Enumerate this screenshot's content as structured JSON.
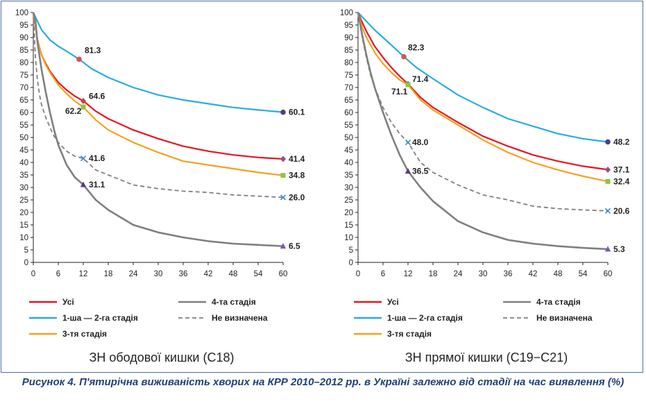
{
  "legend_labels": {
    "all": "Усі",
    "stage12": "1-ша — 2-га стадія",
    "stage3": "3-тя стадія",
    "stage4": "4-та стадія",
    "undefined": "Не визначена"
  },
  "series_colors": {
    "all": "#e8141d",
    "stage12": "#29abe2",
    "stage3": "#f7a01c",
    "stage4": "#7f7f7f",
    "undefined": "#7f7f7f"
  },
  "caption": "Рисунок 4. П'ятирічна виживаність хворих на КРР 2010–2012 рр. в Україні залежно від стадії на час виявлення (%)",
  "chart_data": [
    {
      "type": "line",
      "title": "ЗН ободової кишки (С18)",
      "xlabel": "",
      "ylabel": "",
      "xlim": [
        0,
        60
      ],
      "ylim": [
        0,
        100
      ],
      "xticks": [
        0,
        6,
        12,
        18,
        24,
        30,
        36,
        42,
        48,
        54,
        60
      ],
      "yticks": [
        0,
        5,
        10,
        15,
        20,
        25,
        30,
        35,
        40,
        45,
        50,
        55,
        60,
        65,
        70,
        75,
        80,
        85,
        90,
        95,
        100
      ],
      "grid": false,
      "legend_position": "bottom",
      "series": [
        {
          "key": "stage12",
          "name": "1-ша — 2-га стадія",
          "dash": false,
          "x": [
            0,
            2,
            4,
            6,
            8,
            11,
            14,
            18,
            24,
            30,
            36,
            42,
            48,
            54,
            60
          ],
          "y": [
            100,
            93,
            89,
            86.5,
            84.5,
            81.3,
            77.5,
            74,
            70,
            67,
            65,
            63.5,
            62,
            61,
            60.1
          ],
          "markers": [
            {
              "x": 11,
              "y": 81.3,
              "label": "81.3"
            },
            {
              "x": 60,
              "y": 60.1,
              "label": "60.1"
            }
          ]
        },
        {
          "key": "all",
          "name": "Усі",
          "dash": false,
          "x": [
            0,
            1,
            2,
            3,
            4,
            6,
            8,
            10,
            12,
            15,
            18,
            24,
            30,
            36,
            42,
            48,
            54,
            60
          ],
          "y": [
            100,
            89,
            83,
            79.5,
            76.5,
            72,
            69,
            66.5,
            64.6,
            60.5,
            57.5,
            53,
            49.5,
            46.5,
            44.5,
            43,
            42,
            41.4
          ],
          "markers": [
            {
              "x": 12,
              "y": 64.6,
              "label": "64.6"
            },
            {
              "x": 60,
              "y": 41.4,
              "label": "41.4"
            }
          ]
        },
        {
          "key": "stage3",
          "name": "3-тя стадія",
          "dash": false,
          "x": [
            0,
            1,
            2,
            3,
            4,
            6,
            8,
            10,
            12,
            15,
            18,
            24,
            30,
            36,
            42,
            48,
            54,
            60
          ],
          "y": [
            100,
            89,
            83,
            79,
            76,
            71,
            67.5,
            64.5,
            62.2,
            57,
            53,
            48,
            44,
            40.5,
            39,
            37.5,
            36,
            34.8
          ],
          "markers": [
            {
              "x": 12,
              "y": 62.2,
              "label": "62.2"
            },
            {
              "x": 60,
              "y": 34.8,
              "label": "34.8"
            }
          ]
        },
        {
          "key": "undefined",
          "name": "Не визначена",
          "dash": true,
          "x": [
            0,
            0.5,
            1,
            1.5,
            2,
            3,
            4,
            5,
            6,
            8,
            10,
            12,
            15,
            18,
            24,
            30,
            36,
            42,
            48,
            54,
            60
          ],
          "y": [
            100,
            82,
            73,
            67,
            63,
            58,
            54,
            50.5,
            48,
            44.5,
            42.5,
            41.6,
            37,
            35,
            31,
            29.5,
            28.5,
            28,
            27,
            26.5,
            26
          ],
          "markers": [
            {
              "x": 12,
              "y": 41.6,
              "label": "41.6"
            },
            {
              "x": 60,
              "y": 26,
              "label": "26.0"
            }
          ]
        },
        {
          "key": "stage4",
          "name": "4-та стадія",
          "dash": false,
          "x": [
            0,
            0.5,
            1,
            2,
            3,
            4,
            5,
            6,
            8,
            10,
            12,
            15,
            18,
            24,
            30,
            36,
            42,
            48,
            54,
            60
          ],
          "y": [
            100,
            97,
            88,
            77,
            68,
            60,
            53,
            47,
            39,
            34,
            31.1,
            25,
            21,
            15,
            12,
            10,
            8.5,
            7.5,
            7,
            6.5
          ],
          "markers": [
            {
              "x": 12,
              "y": 31.1,
              "label": "31.1"
            },
            {
              "x": 60,
              "y": 6.5,
              "label": "6.5"
            }
          ]
        }
      ]
    },
    {
      "type": "line",
      "title": "ЗН прямої кишки (С19−С21)",
      "xlabel": "",
      "ylabel": "",
      "xlim": [
        0,
        60
      ],
      "ylim": [
        0,
        100
      ],
      "xticks": [
        0,
        6,
        12,
        18,
        24,
        30,
        36,
        42,
        48,
        54,
        60
      ],
      "yticks": [
        0,
        5,
        10,
        15,
        20,
        25,
        30,
        35,
        40,
        45,
        50,
        55,
        60,
        65,
        70,
        75,
        80,
        85,
        90,
        95,
        100
      ],
      "grid": false,
      "legend_position": "bottom",
      "series": [
        {
          "key": "stage12",
          "name": "1-ша — 2-га стадія",
          "dash": false,
          "x": [
            0,
            2,
            4,
            6,
            8,
            11,
            14,
            18,
            24,
            30,
            36,
            42,
            48,
            54,
            60
          ],
          "y": [
            100,
            96.5,
            93,
            90,
            87,
            82.3,
            78,
            73.5,
            67,
            62,
            57.5,
            54.5,
            51.5,
            49.5,
            48.2
          ],
          "markers": [
            {
              "x": 11,
              "y": 82.3,
              "label": "82.3"
            },
            {
              "x": 60,
              "y": 48.2,
              "label": "48.2"
            }
          ]
        },
        {
          "key": "all",
          "name": "Усі",
          "dash": false,
          "x": [
            0,
            1,
            2,
            4,
            6,
            8,
            10,
            12,
            15,
            18,
            24,
            30,
            36,
            42,
            48,
            54,
            60
          ],
          "y": [
            100,
            96,
            92.5,
            86.5,
            82,
            78,
            74.5,
            71.4,
            66,
            62,
            56,
            50.5,
            46.5,
            43,
            40.5,
            38.5,
            37.1
          ],
          "markers": [
            {
              "x": 12,
              "y": 71.4,
              "label": "71.4"
            },
            {
              "x": 60,
              "y": 37.1,
              "label": "37.1"
            }
          ]
        },
        {
          "key": "stage3",
          "name": "3-тя стадія",
          "dash": false,
          "x": [
            0,
            1,
            2,
            4,
            6,
            8,
            10,
            12,
            15,
            18,
            24,
            30,
            36,
            42,
            48,
            54,
            60
          ],
          "y": [
            100,
            94,
            90,
            84,
            79.5,
            76,
            73,
            71.1,
            65,
            61,
            55,
            49,
            44,
            40,
            37,
            34.5,
            32.4
          ],
          "markers": [
            {
              "x": 12,
              "y": 71.1,
              "label": "71.1"
            },
            {
              "x": 60,
              "y": 32.4,
              "label": "32.4"
            }
          ]
        },
        {
          "key": "undefined",
          "name": "Не визначена",
          "dash": true,
          "x": [
            0,
            1,
            2,
            3,
            4,
            6,
            8,
            10,
            12,
            15,
            18,
            24,
            30,
            36,
            42,
            48,
            54,
            60
          ],
          "y": [
            100,
            90,
            82,
            75,
            70,
            62,
            56,
            51.5,
            48,
            40,
            36,
            31,
            27,
            25,
            22.5,
            21.5,
            21,
            20.6
          ],
          "markers": [
            {
              "x": 12,
              "y": 48,
              "label": "48.0"
            },
            {
              "x": 60,
              "y": 20.6,
              "label": "20.6"
            }
          ]
        },
        {
          "key": "stage4",
          "name": "4-та стадія",
          "dash": false,
          "x": [
            0,
            1,
            2,
            3,
            4,
            6,
            8,
            10,
            12,
            15,
            18,
            24,
            30,
            36,
            42,
            48,
            54,
            60
          ],
          "y": [
            100,
            91,
            83,
            76,
            70,
            60,
            51,
            43,
            36.5,
            30,
            24.5,
            16.5,
            12,
            9,
            7.5,
            6.5,
            5.8,
            5.3
          ],
          "markers": [
            {
              "x": 12,
              "y": 36.5,
              "label": "36.5"
            },
            {
              "x": 60,
              "y": 5.3,
              "label": "5.3"
            }
          ]
        }
      ]
    }
  ]
}
